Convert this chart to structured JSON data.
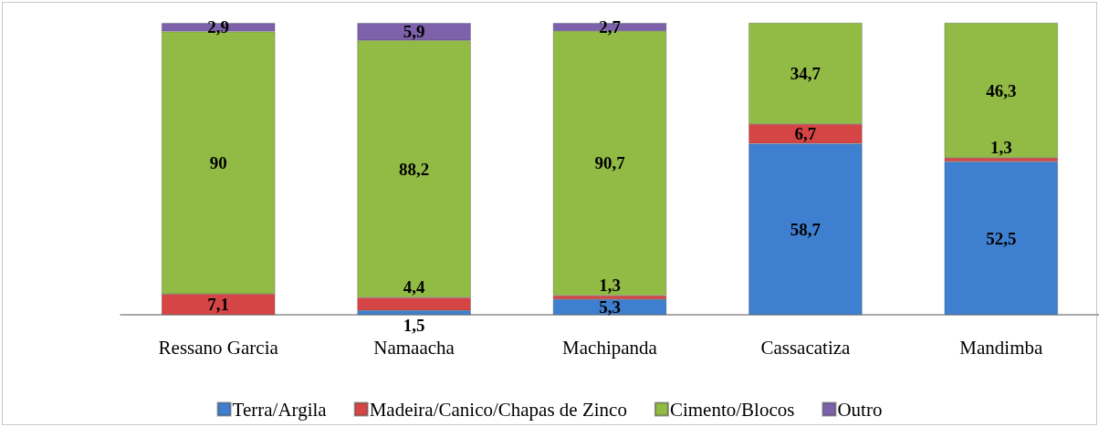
{
  "chart_data": {
    "type": "bar",
    "stacked": true,
    "legend": "bottom",
    "categories": [
      "Ressano Garcia",
      "Namaacha",
      "Machipanda",
      "Cassacatiza",
      "Mandimba"
    ],
    "series": [
      {
        "name": "Terra/Argila",
        "color": "#3f7fcf",
        "values": [
          null,
          1.5,
          5.3,
          58.7,
          52.5
        ],
        "value_labels": [
          null,
          "1,5",
          "5,3",
          "58,7",
          "52,5"
        ]
      },
      {
        "name": "Madeira/Canico/Chapas de Zinco",
        "color": "#d64545",
        "values": [
          7.1,
          4.4,
          1.3,
          6.7,
          1.3
        ],
        "value_labels": [
          "7,1",
          "4,4",
          "1,3",
          "6,7",
          "1,3"
        ]
      },
      {
        "name": "Cimento/Blocos",
        "color": "#92bb45",
        "values": [
          90,
          88.2,
          90.7,
          34.7,
          46.3
        ],
        "value_labels": [
          "90",
          "88,2",
          "90,7",
          "34,7",
          "46,3"
        ]
      },
      {
        "name": "Outro",
        "color": "#7d62ab",
        "values": [
          2.9,
          5.9,
          2.7,
          null,
          null
        ],
        "value_labels": [
          "2,9",
          "5,9",
          "2,7",
          null,
          null
        ]
      }
    ]
  }
}
